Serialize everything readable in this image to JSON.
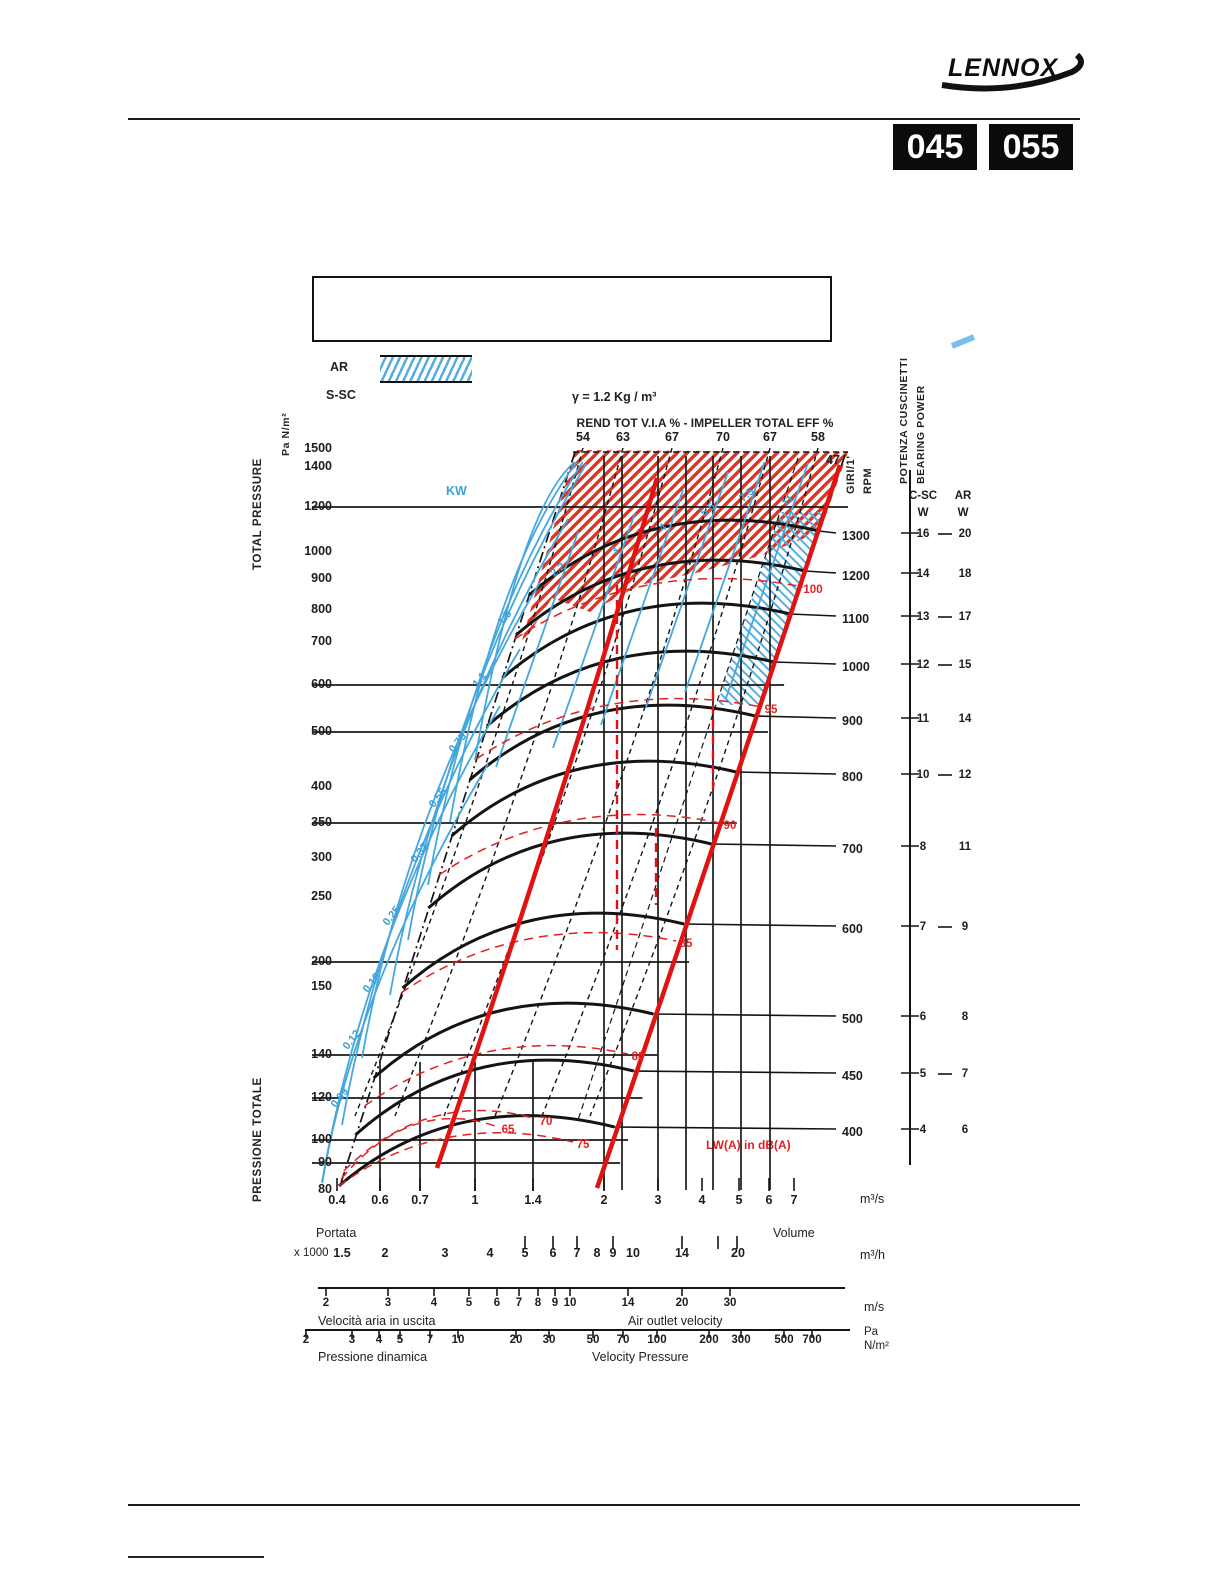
{
  "page": {
    "brand": "LENNOX",
    "badges": [
      "045",
      "055"
    ],
    "title_box_text": ""
  },
  "legend": {
    "ar": "AR",
    "ssc": "S-SC",
    "density_note": "γ = 1.2 Kg / m³"
  },
  "chart_data": {
    "type": "fan-performance-curves",
    "top_axis": {
      "label": "REND TOT V.I.A % - IMPELLER TOTAL EFF %",
      "ticks": [
        "54",
        "63",
        "67",
        "70",
        "67",
        "58"
      ],
      "boundary_value": "47"
    },
    "pressure_axis": {
      "label_en": "TOTAL PRESSURE",
      "label_it": "PRESSIONE TOTALE",
      "unit": "Pa N/m²",
      "ticks": [
        1500,
        1400,
        1200,
        1000,
        900,
        800,
        700,
        600,
        500,
        400,
        350,
        300,
        250,
        200,
        150,
        140,
        120,
        100,
        90,
        80
      ]
    },
    "rpm_axis": {
      "label_line1": "GIRI/1'",
      "label_line2": "RPM",
      "values": [
        1300,
        1200,
        1100,
        1000,
        900,
        800,
        700,
        600,
        500,
        450,
        400
      ]
    },
    "bearing_power": {
      "label_it": "POTENZA CUSCINETTI",
      "label_en": "BEARING POWER",
      "col1": "C-SC",
      "col2": "AR",
      "unit1": "W",
      "unit2": "W",
      "c_sc_values": [
        16,
        14,
        13,
        12,
        11,
        10,
        8,
        7,
        6,
        5,
        4
      ],
      "ar_values": [
        20,
        18,
        17,
        15,
        14,
        12,
        11,
        9,
        8,
        7,
        6
      ]
    },
    "power_curves": {
      "label": "KW",
      "values_kw": [
        11,
        7.5,
        5.5,
        4,
        3,
        2.2,
        1.5,
        1.1,
        0.75,
        0.55,
        0.37,
        0.25,
        0.18,
        0.12,
        0.09
      ]
    },
    "noise_curves": {
      "label": "LW(A) in dB(A)",
      "values_dba": [
        100,
        95,
        90,
        85,
        80,
        75,
        70,
        65
      ]
    },
    "flow_axis_m3s": {
      "label_left": "Portata",
      "label_right": "Volume",
      "unit": "m³/s",
      "ticks": [
        "0.4",
        "0.6",
        "0.7",
        "1",
        "1.4",
        "2",
        "3",
        "4",
        "5",
        "6",
        "7"
      ]
    },
    "flow_axis_m3h": {
      "prefix": "x 1000",
      "unit": "m³/h",
      "ticks": [
        "1.5",
        "2",
        "3",
        "4",
        "5",
        "6",
        "7",
        "8",
        "9",
        "10",
        "14",
        "20"
      ]
    },
    "outlet_velocity_axis": {
      "label_it": "Velocità aria in uscita",
      "label_en": "Air outlet velocity",
      "unit": "m/s",
      "ticks": [
        "2",
        "3",
        "4",
        "5",
        "6",
        "7",
        "8",
        "9",
        "10",
        "14",
        "20",
        "30"
      ]
    },
    "dynamic_pressure_axis": {
      "label_it": "Pressione dinamica",
      "label_en": "Velocity Pressure",
      "unit_line1": "Pa",
      "unit_line2": "N/m²",
      "ticks": [
        "2",
        "3",
        "4",
        "5",
        "7",
        "10",
        "20",
        "30",
        "50",
        "70",
        "100",
        "200",
        "300",
        "500",
        "700"
      ]
    },
    "colors": {
      "power_kw_blue": "#45a7dc",
      "noise_red": "#e02222",
      "hatch_red": "#e03322",
      "ar_zone_blue": "#55aede",
      "curves_black": "#161616"
    }
  }
}
